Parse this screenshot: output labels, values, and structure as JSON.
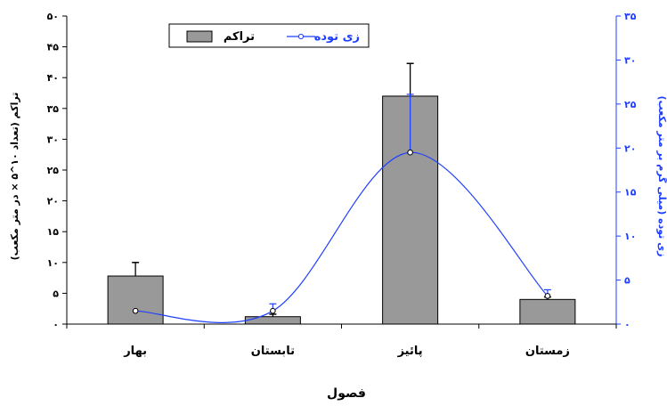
{
  "chart_data": {
    "type": "bar",
    "categories": [
      "بهار",
      "تابستان",
      "پائیز",
      "زمستان"
    ],
    "xlabel": "فصول",
    "series": [
      {
        "name": "تراکم",
        "type": "bar",
        "axis": "left",
        "color": "#999999",
        "values": [
          7.8,
          1.2,
          37.0,
          4.0
        ],
        "errors": [
          2.2,
          0.4,
          5.3,
          0.4
        ]
      },
      {
        "name": "زی توده",
        "type": "line",
        "axis": "right",
        "color": "#1f3fff",
        "values": [
          1.5,
          1.5,
          19.5,
          3.2
        ],
        "errors": [
          0,
          0.8,
          6.6,
          0.7
        ]
      }
    ],
    "left_axis": {
      "label": "تراکم (تعداد ۱۰^۵ × در متر مکعب)",
      "ylim": [
        0,
        50
      ],
      "ticks": [
        0,
        5,
        10,
        15,
        20,
        25,
        30,
        35,
        40,
        45,
        50
      ],
      "tick_labels": [
        "۰",
        "۵",
        "۱۰",
        "۱۵",
        "۲۰",
        "۲۵",
        "۳۰",
        "۳۵",
        "۴۰",
        "۴۵",
        "۵۰"
      ]
    },
    "right_axis": {
      "label": "زی توده (میلی گرم بر متر مکعب)",
      "ylim": [
        0,
        35
      ],
      "ticks": [
        0,
        5,
        10,
        15,
        20,
        25,
        30,
        35
      ],
      "tick_labels": [
        "۰",
        "۵",
        "۱۰",
        "۱۵",
        "۲۰",
        "۲۵",
        "۳۰",
        "۳۵"
      ]
    },
    "legend": {
      "placement": "top-center"
    }
  }
}
